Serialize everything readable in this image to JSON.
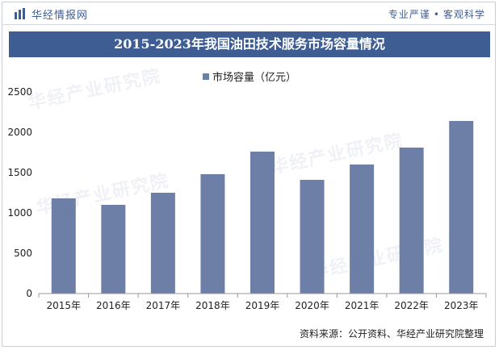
{
  "header": {
    "brand": "华经情报网",
    "tagline_left": "专业严谨",
    "tagline_sep": "•",
    "tagline_right": "客观科学"
  },
  "chart_data": {
    "type": "bar",
    "title": "2015-2023年我国油田技术服务市场容量情况",
    "categories": [
      "2015年",
      "2016年",
      "2017年",
      "2018年",
      "2019年",
      "2020年",
      "2021年",
      "2022年",
      "2023年"
    ],
    "series": [
      {
        "name": "市场容量（亿元）",
        "values": [
          1180,
          1100,
          1250,
          1480,
          1760,
          1410,
          1600,
          1810,
          2140
        ]
      }
    ],
    "ylim": [
      0,
      2500
    ],
    "yticks": [
      0,
      500,
      1000,
      1500,
      2000,
      2500
    ],
    "grid": false,
    "legend_position": "top-center",
    "bar_color": "#6d7fa6"
  },
  "footer": {
    "source": "资料来源：公开资料、华经产业研究院整理"
  },
  "watermark": {
    "text": "华经产业研究院"
  }
}
